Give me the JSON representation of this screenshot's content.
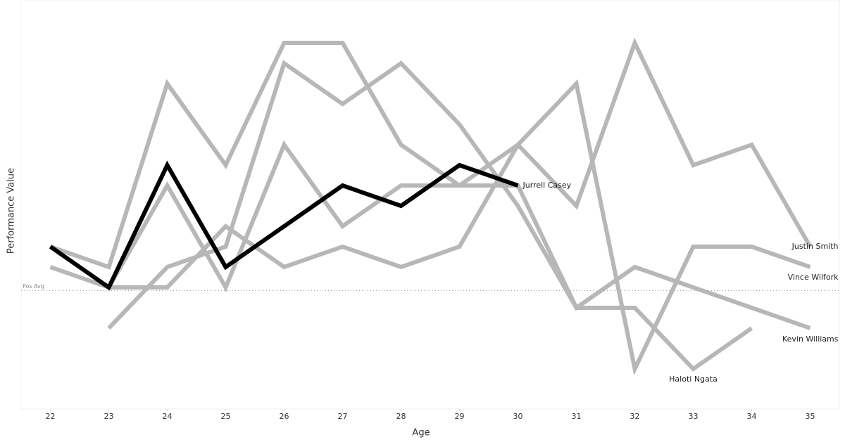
{
  "chart_data": {
    "type": "line",
    "x_label": "Age",
    "y_label": "Performance Value",
    "x": [
      22,
      23,
      24,
      25,
      26,
      27,
      28,
      29,
      30,
      31,
      32,
      33,
      34,
      35
    ],
    "xlim": [
      21.5,
      35.5
    ],
    "xticks": [
      22,
      23,
      24,
      25,
      26,
      27,
      28,
      29,
      30,
      31,
      32,
      33,
      34,
      35
    ],
    "ylim": [
      -6,
      14
    ],
    "reference_line": {
      "label": "Pos Avg",
      "value": -0.15
    },
    "series": [
      {
        "name": "Kevin Williams",
        "color": "#b5b8b7",
        "values": [
          2,
          1,
          10,
          6,
          12,
          12,
          7,
          5,
          5,
          -1,
          1,
          0,
          -1,
          -2
        ]
      },
      {
        "name": "Justin Smith",
        "color": "#b5b8b7",
        "values": [
          null,
          0,
          5,
          0,
          7,
          3,
          5,
          5,
          7,
          4,
          12,
          6,
          7,
          2
        ]
      },
      {
        "name": "Vince Wilfork",
        "color": "#b5b8b7",
        "values": [
          1,
          0,
          0,
          3,
          1,
          2,
          1,
          2,
          7,
          10,
          -4,
          2,
          2,
          1
        ]
      },
      {
        "name": "Haloti Ngata",
        "color": "#b5b8b7",
        "values": [
          null,
          -2,
          1,
          2,
          11,
          9,
          11,
          8,
          4,
          -1,
          -1,
          -4,
          -2,
          null
        ]
      },
      {
        "name": "Jurrell Casey",
        "color": "#000000",
        "values": [
          2,
          0,
          6,
          1,
          3,
          5,
          4,
          6,
          5,
          null,
          null,
          null,
          null,
          null
        ]
      }
    ]
  }
}
